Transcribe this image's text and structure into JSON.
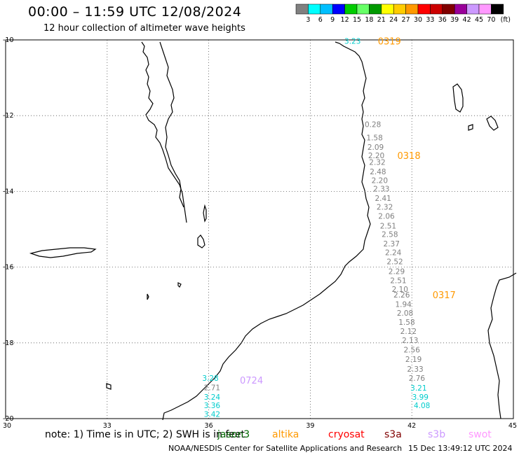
{
  "header": {
    "title": "00:00 – 11:59 UTC 12/08/2024",
    "subtitle": "12 hour collection of altimeter wave heights"
  },
  "legend": {
    "colors": [
      "#808080",
      "#00ffff",
      "#00bfff",
      "#0000ff",
      "#00cc00",
      "#66ff66",
      "#009900",
      "#ffff00",
      "#ffcc00",
      "#ff9900",
      "#ff0000",
      "#cc0000",
      "#800000",
      "#990099",
      "#cc99ff",
      "#ff99ff",
      "#000000"
    ],
    "labels": [
      "3",
      "6",
      "9",
      "12",
      "15",
      "18",
      "21",
      "24",
      "27",
      "30",
      "33",
      "36",
      "39",
      "42",
      "45",
      "70"
    ],
    "unit": "(ft)"
  },
  "axes": {
    "lon_ticks": [
      "30",
      "33",
      "36",
      "39",
      "42",
      "45"
    ],
    "lat_ticks": [
      "-10",
      "-12",
      "-14",
      "-16",
      "-18",
      "-20"
    ]
  },
  "tracks": [
    {
      "id": "0319",
      "label": "0319",
      "label_color": "#ff9900",
      "points": [
        {
          "lon": 40.25,
          "lat": -10.1,
          "value": "3.23",
          "color": "#00cccc"
        }
      ]
    },
    {
      "id": "0318",
      "label": "0318",
      "label_color": "#ff9900",
      "points": [
        {
          "lon": 40.85,
          "lat": -12.3,
          "value": "0.28",
          "color": "#808080"
        },
        {
          "lon": 40.9,
          "lat": -12.65,
          "value": "1.58",
          "color": "#808080"
        },
        {
          "lon": 40.93,
          "lat": -12.9,
          "value": "2.09",
          "color": "#808080"
        },
        {
          "lon": 40.95,
          "lat": -13.12,
          "value": "2.20",
          "color": "#808080"
        },
        {
          "lon": 40.98,
          "lat": -13.3,
          "value": "2.32",
          "color": "#808080"
        },
        {
          "lon": 41.0,
          "lat": -13.55,
          "value": "2.48",
          "color": "#808080"
        },
        {
          "lon": 41.05,
          "lat": -13.78,
          "value": "2.20",
          "color": "#808080"
        },
        {
          "lon": 41.1,
          "lat": -14.0,
          "value": "2.33",
          "color": "#808080"
        },
        {
          "lon": 41.15,
          "lat": -14.25,
          "value": "2.41",
          "color": "#808080"
        },
        {
          "lon": 41.2,
          "lat": -14.48,
          "value": "2.32",
          "color": "#808080"
        },
        {
          "lon": 41.25,
          "lat": -14.72,
          "value": "2.06",
          "color": "#808080"
        },
        {
          "lon": 41.3,
          "lat": -14.98,
          "value": "2.51",
          "color": "#808080"
        },
        {
          "lon": 41.35,
          "lat": -15.2,
          "value": "2.58",
          "color": "#808080"
        },
        {
          "lon": 41.4,
          "lat": -15.45,
          "value": "2.37",
          "color": "#808080"
        },
        {
          "lon": 41.45,
          "lat": -15.68,
          "value": "2.24",
          "color": "#808080"
        },
        {
          "lon": 41.5,
          "lat": -15.92,
          "value": "2.52",
          "color": "#808080"
        }
      ]
    },
    {
      "id": "0317",
      "label": "0317",
      "label_color": "#ff9900",
      "points": [
        {
          "lon": 41.55,
          "lat": -16.18,
          "value": "2.29",
          "color": "#808080"
        },
        {
          "lon": 41.6,
          "lat": -16.42,
          "value": "2.51",
          "color": "#808080"
        },
        {
          "lon": 41.65,
          "lat": -16.65,
          "value": "2.10",
          "color": "#808080"
        },
        {
          "lon": 41.7,
          "lat": -16.8,
          "value": "2.26",
          "color": "#808080"
        },
        {
          "lon": 41.75,
          "lat": -17.05,
          "value": "1.94",
          "color": "#808080"
        },
        {
          "lon": 41.8,
          "lat": -17.28,
          "value": "2.08",
          "color": "#808080"
        },
        {
          "lon": 41.85,
          "lat": -17.52,
          "value": "1.58",
          "color": "#808080"
        },
        {
          "lon": 41.9,
          "lat": -17.76,
          "value": "2.12",
          "color": "#808080"
        },
        {
          "lon": 41.95,
          "lat": -18.0,
          "value": "2.13",
          "color": "#808080"
        },
        {
          "lon": 42.0,
          "lat": -18.25,
          "value": "2.56",
          "color": "#808080"
        },
        {
          "lon": 42.05,
          "lat": -18.5,
          "value": "2.19",
          "color": "#808080"
        },
        {
          "lon": 42.1,
          "lat": -18.76,
          "value": "2.33",
          "color": "#808080"
        },
        {
          "lon": 42.15,
          "lat": -19.0,
          "value": "2.76",
          "color": "#808080"
        },
        {
          "lon": 42.2,
          "lat": -19.26,
          "value": "3.21",
          "color": "#00cccc"
        },
        {
          "lon": 42.25,
          "lat": -19.5,
          "value": "3.99",
          "color": "#00cccc"
        },
        {
          "lon": 42.3,
          "lat": -19.72,
          "value": "4.08",
          "color": "#00cccc"
        }
      ]
    },
    {
      "id": "0724",
      "label": "0724",
      "label_color": "#cc99ff",
      "points": [
        {
          "lon": 36.05,
          "lat": -19.0,
          "value": "3.28",
          "color": "#00cccc"
        },
        {
          "lon": 36.1,
          "lat": -19.25,
          "value": "2.71",
          "color": "#808080"
        },
        {
          "lon": 36.1,
          "lat": -19.5,
          "value": "3.24",
          "color": "#00cccc"
        },
        {
          "lon": 36.1,
          "lat": -19.72,
          "value": "3.36",
          "color": "#00cccc"
        },
        {
          "lon": 36.1,
          "lat": -19.95,
          "value": "3.42",
          "color": "#00cccc"
        }
      ]
    }
  ],
  "footer": {
    "note": "note: 1) Time is in UTC; 2) SWH is in feet",
    "satellites": [
      {
        "name": "jason3",
        "color": "#006600"
      },
      {
        "name": "altika",
        "color": "#ff9900"
      },
      {
        "name": "cryosat",
        "color": "#ff0000"
      },
      {
        "name": "s3a",
        "color": "#800000"
      },
      {
        "name": "s3b",
        "color": "#cc99ff"
      },
      {
        "name": "swot",
        "color": "#ff99ff"
      }
    ],
    "credit": "NOAA/NESDIS Center for Satellite Applications and Research",
    "timestamp": "15 Dec 13:49:12 UTC 2024"
  }
}
